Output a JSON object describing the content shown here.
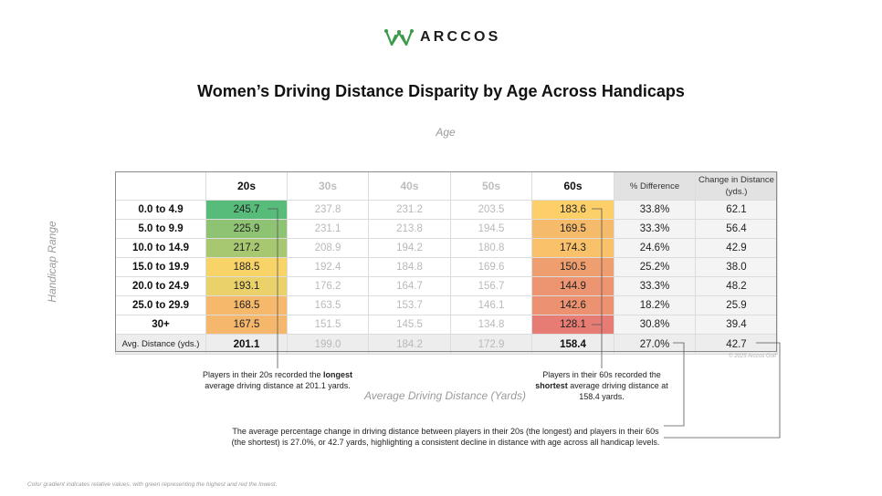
{
  "brand": {
    "name": "ARCCOS",
    "color": "#3a9a4a"
  },
  "chart_data": {
    "type": "heatmap",
    "title": "Women’s Driving Distance Disparity by Age Across Handicaps",
    "xlabel": "Age",
    "ylabel": "Handicap Range",
    "value_label": "Average Driving Distance (Yards)",
    "columns": [
      "20s",
      "30s",
      "40s",
      "50s",
      "60s"
    ],
    "highlighted_columns": [
      "20s",
      "60s"
    ],
    "stat_columns": [
      "% Difference",
      "Change in Distance (yds.)"
    ],
    "rows": [
      {
        "label": "0.0 to 4.9",
        "values": [
          "245.7",
          "237.8",
          "231.2",
          "203.5",
          "183.6"
        ],
        "pct_diff": "33.8%",
        "change": "62.1"
      },
      {
        "label": "5.0 to 9.9",
        "values": [
          "225.9",
          "231.1",
          "213.8",
          "194.5",
          "169.5"
        ],
        "pct_diff": "33.3%",
        "change": "56.4"
      },
      {
        "label": "10.0 to 14.9",
        "values": [
          "217.2",
          "208.9",
          "194.2",
          "180.8",
          "174.3"
        ],
        "pct_diff": "24.6%",
        "change": "42.9"
      },
      {
        "label": "15.0 to 19.9",
        "values": [
          "188.5",
          "192.4",
          "184.8",
          "169.6",
          "150.5"
        ],
        "pct_diff": "25.2%",
        "change": "38.0"
      },
      {
        "label": "20.0 to 24.9",
        "values": [
          "193.1",
          "176.2",
          "164.7",
          "156.7",
          "144.9"
        ],
        "pct_diff": "33.3%",
        "change": "48.2"
      },
      {
        "label": "25.0 to 29.9",
        "values": [
          "168.5",
          "163.5",
          "153.7",
          "146.1",
          "142.6"
        ],
        "pct_diff": "18.2%",
        "change": "25.9"
      },
      {
        "label": "30+",
        "values": [
          "167.5",
          "151.5",
          "145.5",
          "134.8",
          "128.1"
        ],
        "pct_diff": "30.8%",
        "change": "39.4"
      }
    ],
    "average": {
      "label": "Avg. Distance (yds.)",
      "values": [
        "201.1",
        "199.0",
        "184.2",
        "172.9",
        "158.4"
      ],
      "pct_diff": "27.0%",
      "change": "42.7"
    },
    "color_scale": {
      "high": "#57bb7a",
      "mid": "#fdd468",
      "low": "#e67c73"
    },
    "value_range": [
      128.1,
      245.7
    ]
  },
  "copyright": "© 2025 Arccos Golf",
  "annotations": {
    "left": {
      "pre": "Players in their 20s recorded the ",
      "bold": "longest",
      "post": " average driving distance at 201.1 yards."
    },
    "right": {
      "pre": "Players in their 60s recorded the ",
      "bold": "shortest",
      "post": " average driving distance at 158.4 yards."
    },
    "bottom": "The average percentage change in driving distance between players in their 20s (the longest) and players in their 60s (the shortest) is 27.0%, or 42.7 yards, highlighting a consistent decline in distance with age across all handicap levels."
  },
  "footnote": "Color gradient indicates relative values, with green representing the highest and red the lowest."
}
